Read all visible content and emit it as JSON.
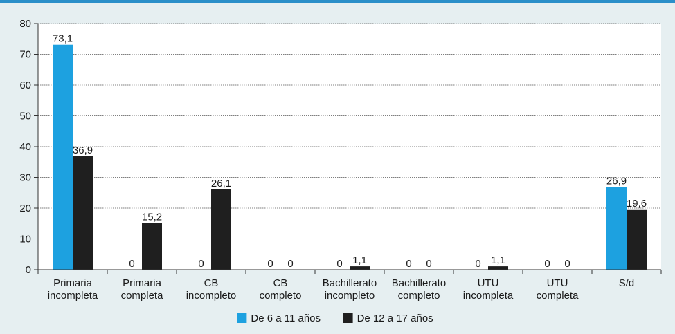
{
  "chart_data": {
    "type": "bar",
    "title": "",
    "xlabel": "",
    "ylabel": "",
    "ylim": [
      0,
      80
    ],
    "yticks": [
      0,
      10,
      20,
      30,
      40,
      50,
      60,
      70,
      80
    ],
    "grid": true,
    "legend_position": "bottom",
    "categories": [
      [
        "Primaria",
        "incompleta"
      ],
      [
        "Primaria",
        "completa"
      ],
      [
        "CB",
        "incompleto"
      ],
      [
        "CB",
        "completo"
      ],
      [
        "Bachillerato",
        "incompleto"
      ],
      [
        "Bachillerato",
        "completo"
      ],
      [
        "UTU",
        "incompleta"
      ],
      [
        "UTU",
        "completa"
      ],
      [
        "S/d"
      ]
    ],
    "series": [
      {
        "name": "De 6 a 11 años",
        "color": "#1da1e0",
        "values": [
          73.1,
          0,
          0,
          0,
          0,
          0,
          0,
          0,
          26.9
        ],
        "labels": [
          "73,1",
          "0",
          "0",
          "0",
          "0",
          "0",
          "0",
          "0",
          "26,9"
        ]
      },
      {
        "name": "De 12 a 17 años",
        "color": "#1f1f1f",
        "values": [
          36.9,
          15.2,
          26.1,
          0,
          1.1,
          0,
          1.1,
          0,
          19.6
        ],
        "labels": [
          "36,9",
          "15,2",
          "26,1",
          "0",
          "1,1",
          "0",
          "1,1",
          "0",
          "19,6"
        ]
      }
    ]
  }
}
